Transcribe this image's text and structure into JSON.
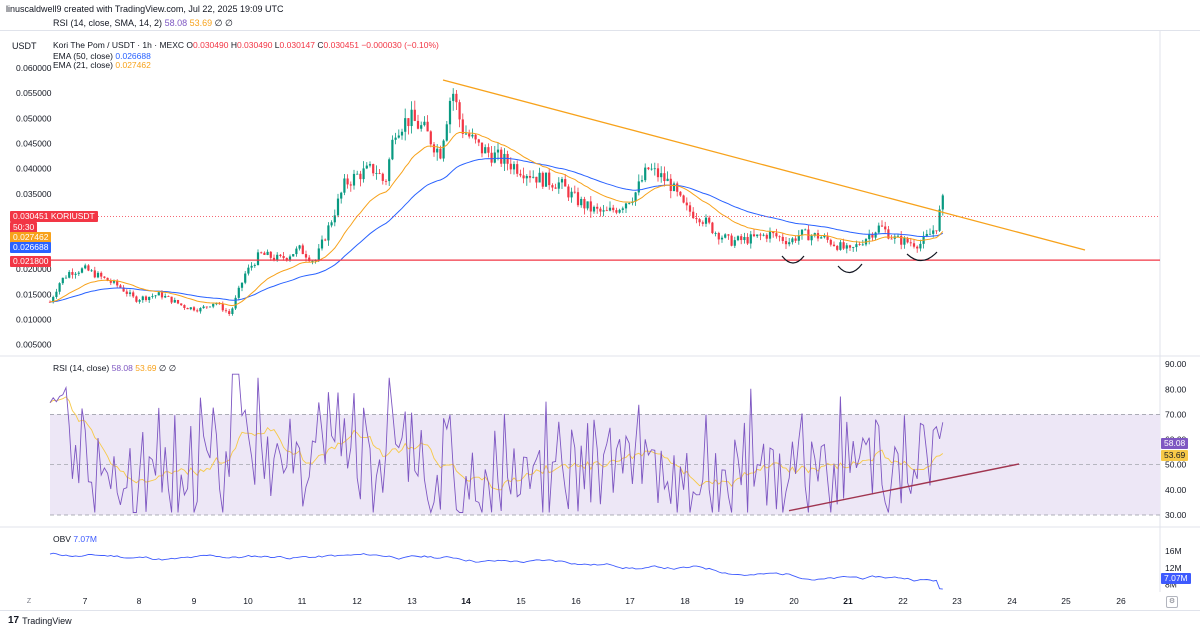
{
  "header": {
    "credit": "linuscaldwell9 created with TradingView.com, Jul 22, 2025 19:09 UTC",
    "rsi_top": {
      "name": "RSI (14, close, SMA, 14, 2)",
      "v1": "58.08",
      "v2": "53.69",
      "v3": "∅",
      "v4": "∅"
    }
  },
  "price_pane": {
    "unit": "USDT",
    "symbol_line": {
      "title": "Kori The Pom / USDT · 1h · MEXC",
      "o_label": "O",
      "o": "0.030490",
      "h_label": "H",
      "h": "0.030490",
      "l_label": "L",
      "l": "0.030147",
      "c_label": "C",
      "c": "0.030451",
      "chg": "−0.000030 (−0.10%)"
    },
    "ema50": {
      "label": "EMA (50, close)",
      "value": "0.026688",
      "color": "#2962ff"
    },
    "ema21": {
      "label": "EMA (21, close)",
      "value": "0.027462",
      "color": "#f7a21b"
    },
    "y_ticks": [
      "0.060000",
      "0.055000",
      "0.050000",
      "0.045000",
      "0.040000",
      "0.035000",
      "0.020000",
      "0.015000",
      "0.010000",
      "0.005000"
    ],
    "tags": {
      "last_price": "0.030451",
      "symbol": "KORIUSDT",
      "countdown": "50:30",
      "ema21": "0.027462",
      "ema50": "0.026688",
      "support": "0.021800"
    },
    "support_level": 0.0218,
    "colors": {
      "up": "#089981",
      "down": "#f23645",
      "support": "#f23645",
      "trendline": "#f7a21b"
    }
  },
  "rsi_pane": {
    "header": {
      "name": "RSI (14, close)",
      "v1": "58.08",
      "v2": "53.69",
      "v3": "∅",
      "v4": "∅"
    },
    "y_ticks": [
      "90.00",
      "80.00",
      "70.00",
      "60.00",
      "50.00",
      "40.00",
      "30.00"
    ],
    "tags": {
      "rsi": "58.08",
      "sma": "53.69"
    },
    "bands": {
      "upper": 70,
      "middle": 50,
      "lower": 30
    },
    "colors": {
      "rsi": "#7e57c2",
      "sma": "#f7c948",
      "trendline": "#a03550",
      "band_fill": "#ede7f6"
    }
  },
  "obv_pane": {
    "header": {
      "name": "OBV",
      "value": "7.07M"
    },
    "y_ticks": [
      "16M",
      "12M",
      "8M"
    ],
    "tag": "7.07M",
    "color": "#3d5afe"
  },
  "x_axis": {
    "labels": [
      "7",
      "8",
      "9",
      "10",
      "11",
      "12",
      "13",
      "14",
      "15",
      "16",
      "17",
      "18",
      "19",
      "20",
      "21",
      "22",
      "23",
      "24",
      "25",
      "26"
    ]
  },
  "footer": {
    "brand": "TradingView",
    "logo": "tv-logo-icon"
  }
}
